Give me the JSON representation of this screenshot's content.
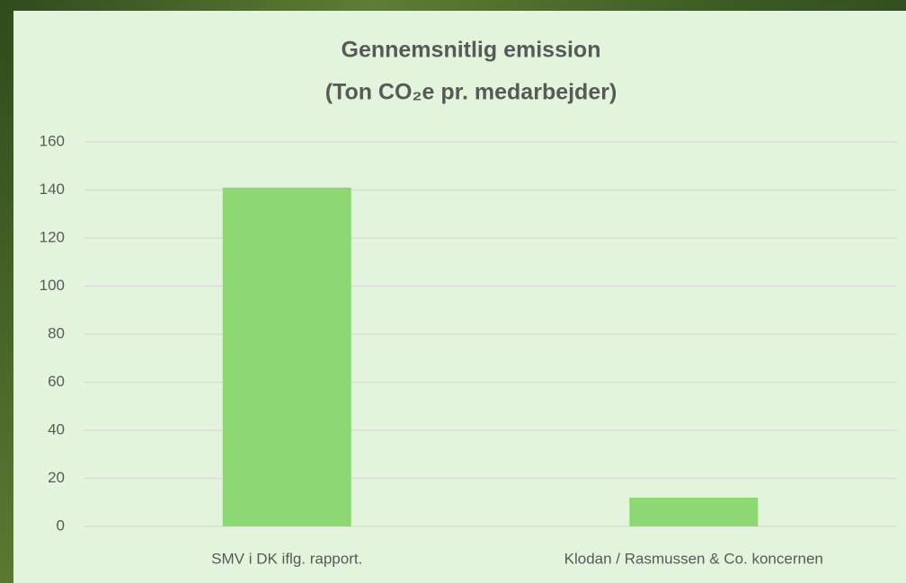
{
  "chart_data": {
    "type": "bar",
    "title": [
      "Gennemsnitlig emission",
      "(Ton CO₂e pr. medarbejder)"
    ],
    "categories": [
      "SMV i DK iflg. rapport.",
      "Klodan / Rasmussen & Co. koncernen"
    ],
    "values": [
      141,
      12
    ],
    "color": "#8ed873",
    "ylim": [
      0,
      160
    ],
    "yticks": [
      0,
      20,
      40,
      60,
      80,
      100,
      120,
      140,
      160
    ],
    "grid": true
  }
}
